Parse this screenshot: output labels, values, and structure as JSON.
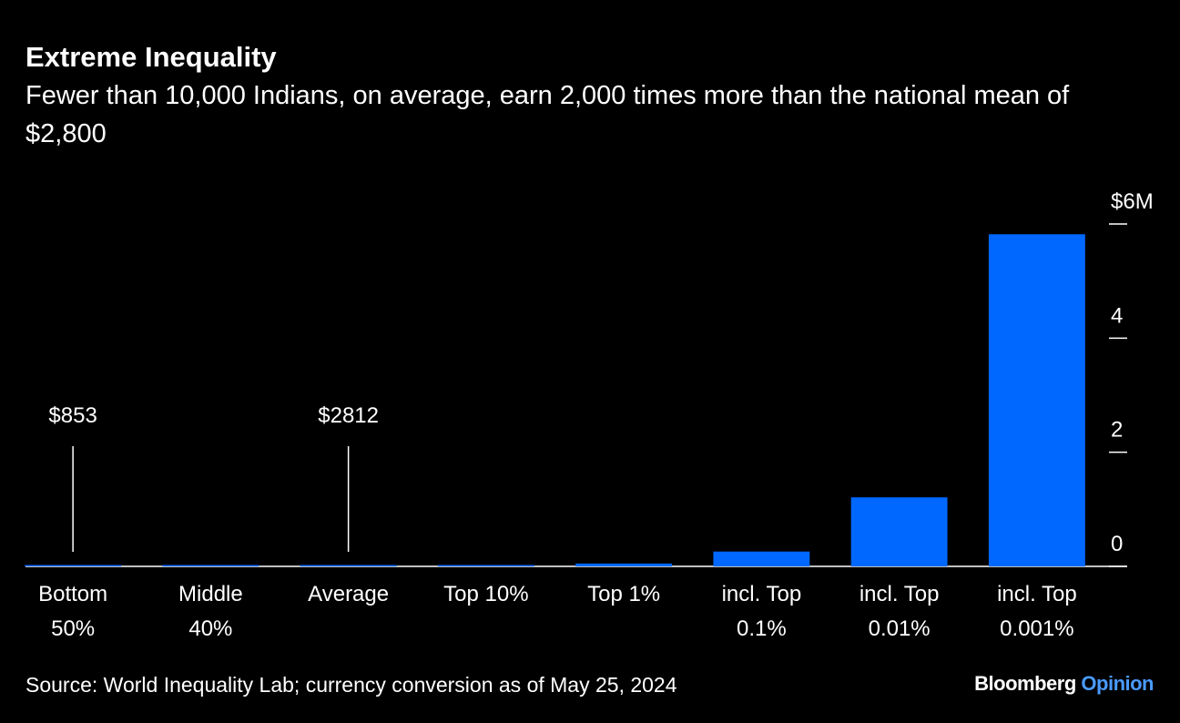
{
  "chart_data": {
    "type": "bar",
    "title": "Extreme Inequality",
    "subtitle": "Fewer than 10,000 Indians, on average, earn 2,000 times more than the national mean of $2,800",
    "categories": [
      [
        "Bottom",
        "50%"
      ],
      [
        "Middle",
        "40%"
      ],
      [
        "Average"
      ],
      [
        "Top 10%"
      ],
      [
        "Top 1%"
      ],
      [
        "incl. Top",
        "0.1%"
      ],
      [
        "incl. Top",
        "0.01%"
      ],
      [
        "incl. Top",
        "0.001%"
      ]
    ],
    "values": [
      0.000853,
      0.0023,
      0.002812,
      0.0135,
      0.05,
      0.26,
      1.21,
      5.82
    ],
    "value_labels": [
      "$853",
      null,
      "$2812",
      null,
      null,
      null,
      null,
      null
    ],
    "color": "#0068ff",
    "ylim": [
      0,
      6
    ],
    "yticks": [
      0,
      2,
      4,
      {
        "value": 6,
        "label": "$6M"
      }
    ],
    "source": "Source: World Inequality Lab; currency conversion as of May 25, 2024",
    "brand": {
      "name": "Bloomberg",
      "section": "Opinion"
    }
  }
}
